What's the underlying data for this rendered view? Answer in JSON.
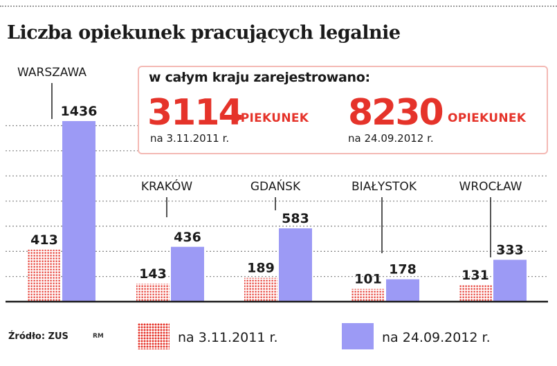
{
  "title": "Liczba opiekunek pracujących legalnie",
  "summary": {
    "heading": "w całym kraju zarejestrowano:",
    "left": {
      "number": "3114",
      "unit": "OPIEKUNEK",
      "date": "na 3.11.2011 r."
    },
    "right": {
      "number": "8230",
      "unit": "OPIEKUNEK",
      "date": "na 24.09.2012 r."
    }
  },
  "source": "Źródło: ZUS",
  "author_initials": "RM",
  "colors": {
    "series_2011": "#e5332a",
    "series_2012": "#9c9af5",
    "accent": "#e5332a"
  },
  "chart_data": {
    "type": "bar",
    "title": "Liczba opiekunek pracujących legalnie",
    "xlabel": "",
    "ylabel": "",
    "categories": [
      "WARSZAWA",
      "KRAKÓW",
      "GDAŃSK",
      "BIAŁYSTOK",
      "WROCŁAW"
    ],
    "series": [
      {
        "name": "na 3.11.2011 r.",
        "values": [
          413,
          143,
          189,
          101,
          131
        ],
        "pattern": "dotted-red"
      },
      {
        "name": "na 24.09.2012 r.",
        "values": [
          1436,
          436,
          583,
          178,
          333
        ],
        "pattern": "solid-lavender"
      }
    ],
    "ylim": [
      0,
      1436
    ],
    "grid": true,
    "legend_position": "bottom"
  }
}
